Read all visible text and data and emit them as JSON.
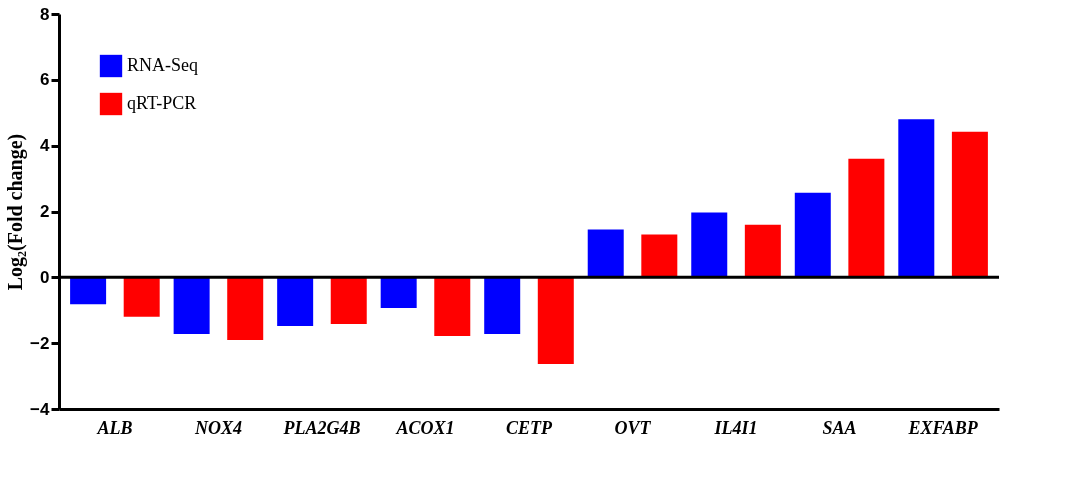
{
  "chart_data": {
    "type": "bar",
    "ylabel": "Log₂(Fold change)",
    "categories": [
      "ALB",
      "NOX4",
      "PLA2G4B",
      "ACOX1",
      "CETP",
      "OVT",
      "IL4I1",
      "SAA",
      "EXFABP"
    ],
    "series": [
      {
        "name": "RNA-Seq",
        "color": "#0000ff",
        "values": [
          -0.82,
          -1.72,
          -1.48,
          -0.93,
          -1.72,
          1.45,
          1.97,
          2.57,
          4.8
        ]
      },
      {
        "name": "qRT-PCR",
        "color": "#ff0000",
        "values": [
          -1.2,
          -1.9,
          -1.42,
          -1.78,
          -2.63,
          1.3,
          1.6,
          3.6,
          4.42
        ]
      }
    ],
    "ylim": [
      -4,
      8
    ],
    "yticks": [
      -4,
      -2,
      0,
      2,
      4,
      6,
      8
    ],
    "ref_lines": [
      {
        "axis": "y",
        "value": 0,
        "label": null,
        "color": "#000000"
      }
    ],
    "grid": false,
    "legend": "top left"
  }
}
